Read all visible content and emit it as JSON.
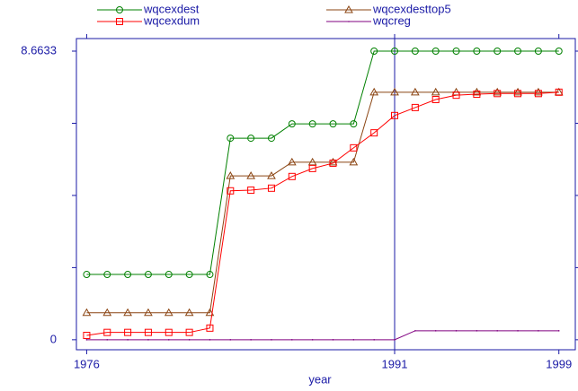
{
  "chart_data": {
    "type": "line",
    "x_label": "year",
    "x": [
      1976,
      1977,
      1978,
      1979,
      1980,
      1981,
      1982,
      1983,
      1984,
      1985,
      1986,
      1987,
      1988,
      1989,
      1990,
      1991,
      1992,
      1993,
      1994,
      1995,
      1996,
      1997,
      1998,
      1999
    ],
    "series": [
      {
        "name": "wqcexdest",
        "color": "#008000",
        "marker": "circle",
        "values": [
          1.96,
          1.96,
          1.96,
          1.96,
          1.96,
          1.96,
          1.96,
          6.05,
          6.05,
          6.05,
          6.48,
          6.48,
          6.48,
          6.48,
          8.6633,
          8.6633,
          8.6633,
          8.6633,
          8.6633,
          8.6633,
          8.6633,
          8.6633,
          8.6633,
          8.6633
        ]
      },
      {
        "name": "wqcexdesttop5",
        "color": "#8b4513",
        "marker": "triangle",
        "values": [
          0.81,
          0.81,
          0.81,
          0.81,
          0.81,
          0.81,
          0.81,
          4.92,
          4.92,
          4.92,
          5.33,
          5.33,
          5.33,
          5.33,
          7.43,
          7.43,
          7.43,
          7.43,
          7.43,
          7.43,
          7.43,
          7.43,
          7.43,
          7.43
        ]
      },
      {
        "name": "wqcexdum",
        "color": "#ff0000",
        "marker": "square",
        "values": [
          0.13,
          0.22,
          0.22,
          0.22,
          0.22,
          0.22,
          0.35,
          4.47,
          4.49,
          4.55,
          4.9,
          5.14,
          5.3,
          5.76,
          6.21,
          6.73,
          6.97,
          7.21,
          7.34,
          7.37,
          7.39,
          7.39,
          7.39,
          7.43
        ]
      },
      {
        "name": "wqcreg",
        "color": "#800080",
        "marker": "dot",
        "values": [
          0,
          0,
          0,
          0,
          0,
          0,
          0,
          0,
          0,
          0,
          0,
          0,
          0,
          0,
          0,
          0,
          0.27,
          0.27,
          0.27,
          0.27,
          0.27,
          0.27,
          0.27,
          0.27
        ]
      }
    ],
    "xlim": [
      1975.5,
      1999.8
    ],
    "xticks": [
      1976,
      1991,
      1999
    ],
    "ylim": [
      -0.3,
      9.04
    ],
    "yticks": [
      0,
      8.6633
    ],
    "yminor_ticks": [
      2.1658,
      4.3317,
      6.4975
    ],
    "reference_x": 1991,
    "axis_color": "#1a1aa6"
  }
}
